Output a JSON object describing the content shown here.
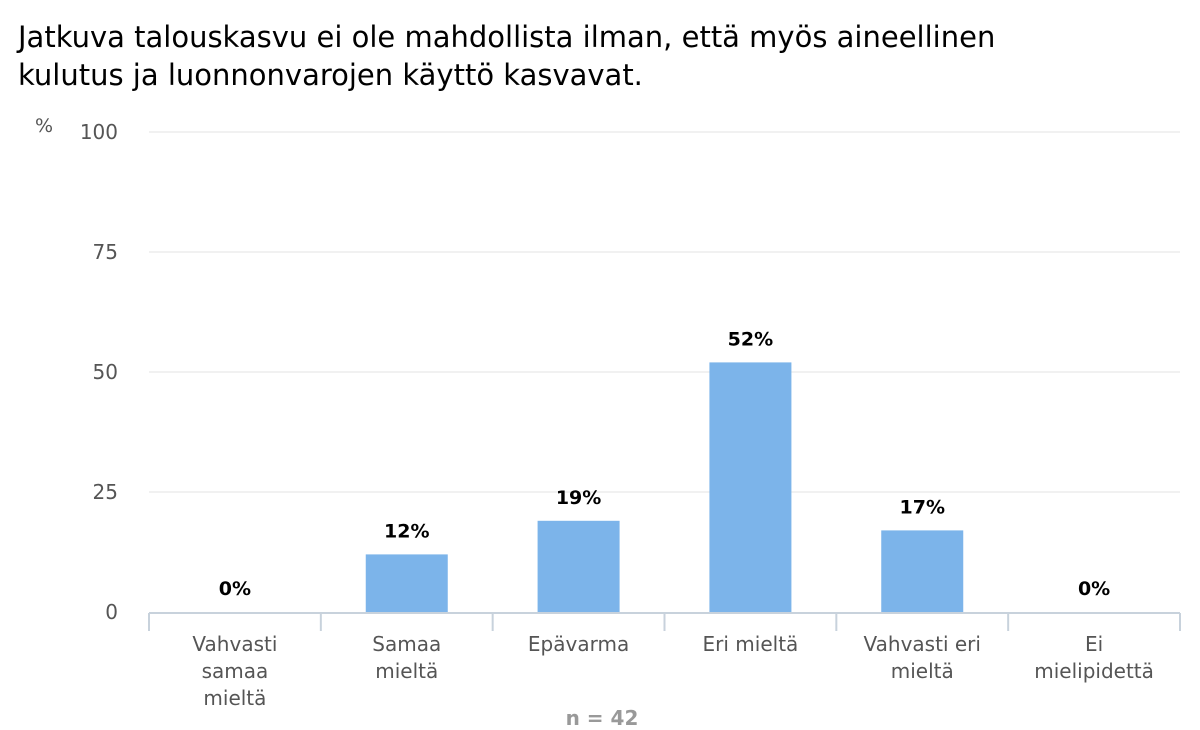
{
  "chart_data": {
    "type": "bar",
    "title": "Jatkuva talouskasvu ei ole mahdollista ilman, että myös aineellinen\nkulutus ja luonnonvarojen käyttö kasvavat.",
    "ylabel": "%",
    "ylim": [
      0,
      100
    ],
    "yticks": [
      0,
      25,
      50,
      75,
      100
    ],
    "grid": true,
    "categories": [
      [
        "Vahvasti",
        "samaa",
        "mieltä"
      ],
      [
        "Samaa",
        "mieltä"
      ],
      [
        "Epävarma"
      ],
      [
        "Eri mieltä"
      ],
      [
        "Vahvasti eri",
        "mieltä"
      ],
      [
        "Ei",
        "mielipidettä"
      ]
    ],
    "values": [
      0,
      12,
      19,
      52,
      17,
      0
    ],
    "data_labels": [
      "0%",
      "12%",
      "19%",
      "52%",
      "17%",
      "0%"
    ],
    "bar_color": "#7cb4ea",
    "note": "n = 42"
  }
}
